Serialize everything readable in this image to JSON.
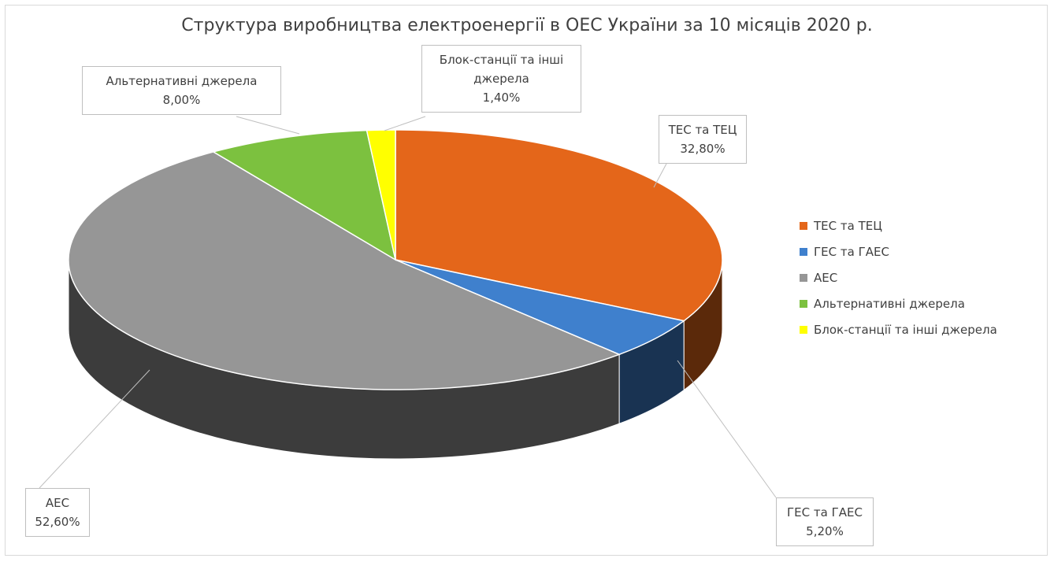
{
  "chart_data": {
    "type": "pie3d",
    "title": "Структура виробництва електроенергії в ОЕС України за 10 місяців 2020 р.",
    "categories": [
      "ТЕС та ТЕЦ",
      "ГЕС та ГАЕС",
      "АЕС",
      "Альтернативні джерела",
      "Блок-станції та інші джерела"
    ],
    "values": [
      32.8,
      5.2,
      52.6,
      8.0,
      1.4
    ],
    "value_labels": [
      "32,80%",
      "5,20%",
      "52,60%",
      "8,00%",
      "1,40%"
    ],
    "colors": [
      "#e4661a",
      "#3f80cd",
      "#969696",
      "#7cc13f",
      "#ffff00"
    ],
    "legend": "right"
  }
}
